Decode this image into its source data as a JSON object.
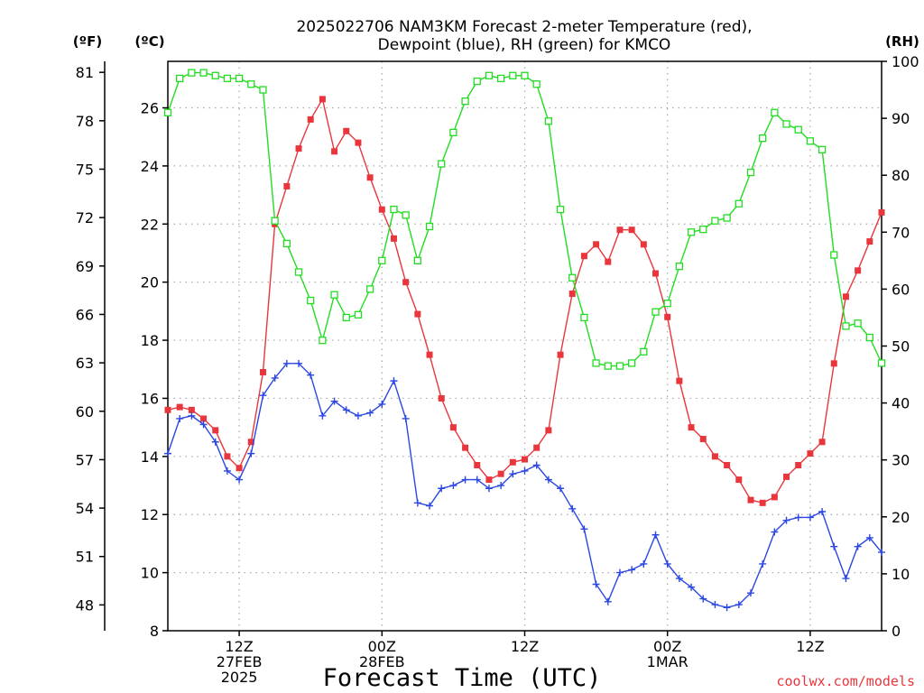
{
  "chart_data": {
    "type": "line",
    "title": "2025022706 NAM3KM Forecast 2-meter Temperature (red),",
    "subtitle": "Dewpoint (blue), RH (green) for KMCO",
    "xlabel": "Forecast Time (UTC)",
    "watermark": "coolwx.com/models",
    "unit_labels": {
      "fahrenheit": "(ºF)",
      "celsius": "(ºC)",
      "rh": "(RH)"
    },
    "x_tick_labels": [
      {
        "hour": 6,
        "lines": [
          "12Z",
          "27FEB",
          "2025"
        ]
      },
      {
        "hour": 18,
        "lines": [
          "00Z",
          "28FEB"
        ]
      },
      {
        "hour": 30,
        "lines": [
          "12Z"
        ]
      },
      {
        "hour": 42,
        "lines": [
          "00Z",
          "1MAR"
        ]
      },
      {
        "hour": 54,
        "lines": [
          "12Z"
        ]
      }
    ],
    "xlim": [
      0,
      60
    ],
    "celsius_axis": {
      "ylim": [
        8,
        27.6
      ],
      "ticks": [
        "8",
        "10",
        "12",
        "14",
        "16",
        "18",
        "20",
        "22",
        "24",
        "26"
      ]
    },
    "fahrenheit_axis": {
      "ticks": [
        "48",
        "51",
        "54",
        "57",
        "60",
        "63",
        "66",
        "69",
        "72",
        "75",
        "78",
        "81"
      ]
    },
    "rh_axis": {
      "ylim": [
        0,
        100
      ],
      "ticks": [
        "0",
        "10",
        "20",
        "30",
        "40",
        "50",
        "60",
        "70",
        "80",
        "90",
        "100"
      ]
    },
    "grid": true,
    "colors": {
      "temperature": "#e8363c",
      "dewpoint": "#2b47e3",
      "rh": "#22dd22"
    },
    "series": [
      {
        "key": "temperature",
        "axis": "celsius",
        "marker": "filled-square",
        "values": [
          15.6,
          15.7,
          15.6,
          15.3,
          14.9,
          14.0,
          13.6,
          14.5,
          16.9,
          22.0,
          23.3,
          24.6,
          25.6,
          26.3,
          24.5,
          25.2,
          24.8,
          23.6,
          22.5,
          21.5,
          20.0,
          18.9,
          17.5,
          16.0,
          15.0,
          14.3,
          13.7,
          13.2,
          13.4,
          13.8,
          13.9,
          14.3,
          14.9,
          17.5,
          19.6,
          20.9,
          21.3,
          20.7,
          21.8,
          21.8,
          21.3,
          20.3,
          18.8,
          16.6,
          15.0,
          14.6,
          14.0,
          13.7,
          13.2,
          12.5,
          12.4,
          12.6,
          13.3,
          13.7,
          14.1,
          14.5,
          17.2,
          19.5,
          20.4,
          21.4,
          22.4
        ]
      },
      {
        "key": "dewpoint",
        "axis": "celsius",
        "marker": "plus",
        "values": [
          14.1,
          15.3,
          15.4,
          15.1,
          14.5,
          13.5,
          13.2,
          14.1,
          16.1,
          16.7,
          17.2,
          17.2,
          16.8,
          15.4,
          15.9,
          15.6,
          15.4,
          15.5,
          15.8,
          16.6,
          15.3,
          12.4,
          12.3,
          12.9,
          13.0,
          13.2,
          13.2,
          12.9,
          13.0,
          13.4,
          13.5,
          13.7,
          13.2,
          12.9,
          12.2,
          11.5,
          9.6,
          9.0,
          10.0,
          10.1,
          10.3,
          11.3,
          10.3,
          9.8,
          9.5,
          9.1,
          8.9,
          8.8,
          8.9,
          9.3,
          10.3,
          11.4,
          11.8,
          11.9,
          11.9,
          12.1,
          10.9,
          9.8,
          10.9,
          11.2,
          10.7
        ]
      },
      {
        "key": "rh",
        "axis": "rh",
        "marker": "open-square",
        "values": [
          91,
          97,
          98,
          98,
          97.5,
          97,
          97,
          96,
          95,
          72,
          68,
          63,
          58,
          51,
          59,
          55,
          55.5,
          60,
          65,
          74,
          73,
          65,
          71,
          82,
          87.5,
          93,
          96.5,
          97.5,
          97,
          97.5,
          97.5,
          96,
          89.5,
          74,
          62,
          55,
          47,
          46.5,
          46.5,
          47,
          49,
          56,
          57.5,
          64,
          70,
          70.5,
          72,
          72.5,
          75,
          80.5,
          86.5,
          91,
          89,
          88,
          86,
          84.5,
          66,
          53.5,
          54,
          51.5,
          47
        ]
      }
    ]
  }
}
